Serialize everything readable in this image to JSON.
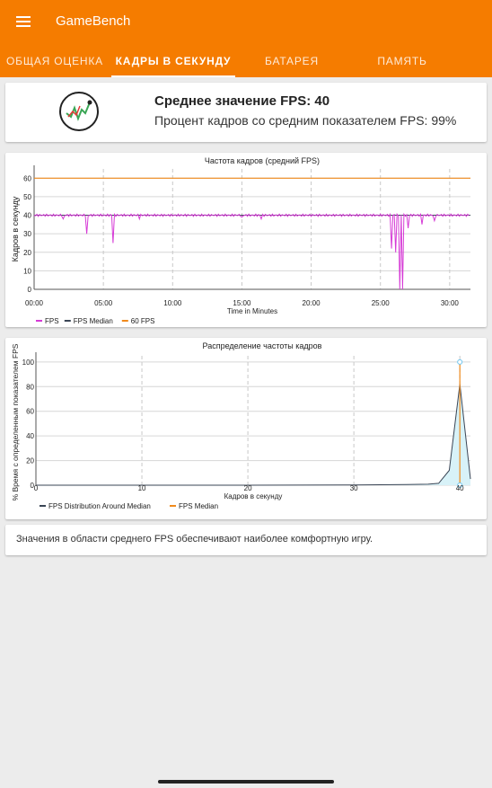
{
  "app": {
    "title": "GameBench"
  },
  "tabs": [
    {
      "label": "ОБЩАЯ ОЦЕНКА",
      "active": false
    },
    {
      "label": "КАДРЫ В СЕКУНДУ",
      "active": true
    },
    {
      "label": "БАТАРЕЯ",
      "active": false
    },
    {
      "label": "ПАМЯТЬ",
      "active": false
    }
  ],
  "summary": {
    "median_fps_text": "Среднее значение FPS: 40",
    "frames_percent_text": "Процент кадров со средним показателем FPS: 99%"
  },
  "colors": {
    "brand": "#f57c00",
    "fps_series": "#d63bd6",
    "median": "#3a4555",
    "sixty": "#f08a1c",
    "dist_fill": "#d8f2f8"
  },
  "chart_data": [
    {
      "type": "line",
      "title": "Частота кадров (средний FPS)",
      "xlabel": "Time in Minutes",
      "ylabel": "Кадров в секунду",
      "xlim": [
        0,
        31.5
      ],
      "ylim": [
        0,
        65
      ],
      "x_ticks": [
        "00:00",
        "05:00",
        "10:00",
        "15:00",
        "20:00",
        "25:00",
        "30:00"
      ],
      "y_ticks": [
        0,
        10,
        20,
        30,
        40,
        50,
        60
      ],
      "legend": [
        "FPS",
        "FPS Median",
        "60 FPS"
      ],
      "legend_position": "bottom-left",
      "series": [
        {
          "name": "FPS",
          "baseline": 40,
          "dips": [
            [
              2.1,
              38
            ],
            [
              3.8,
              30
            ],
            [
              5.7,
              25
            ],
            [
              7.6,
              38
            ],
            [
              15.0,
              39
            ],
            [
              16.4,
              38
            ],
            [
              25.8,
              22
            ],
            [
              26.1,
              20
            ],
            [
              26.4,
              0
            ],
            [
              26.6,
              0
            ],
            [
              27.0,
              33
            ],
            [
              28.0,
              35
            ],
            [
              28.9,
              37
            ]
          ]
        },
        {
          "name": "FPS Median",
          "value": 40
        },
        {
          "name": "60 FPS",
          "value": 60
        }
      ]
    },
    {
      "type": "area",
      "title": "Распределение частоты кадров",
      "xlabel": "Кадров в секунду",
      "ylabel": "% Время с определенным показателем FPS",
      "xlim": [
        0,
        41
      ],
      "ylim": [
        0,
        105
      ],
      "x_ticks": [
        0,
        10,
        20,
        30,
        40
      ],
      "y_ticks": [
        0,
        20,
        40,
        60,
        80,
        100
      ],
      "legend": [
        "FPS Distribution Around Median",
        "FPS Median"
      ],
      "legend_position": "bottom-left",
      "series": [
        {
          "name": "FPS Distribution Around Median",
          "x": [
            0,
            10,
            20,
            30,
            35,
            37,
            38,
            39,
            40,
            41
          ],
          "y": [
            0,
            0,
            0,
            0.2,
            0.5,
            0.8,
            1.5,
            12,
            82,
            5
          ]
        },
        {
          "name": "FPS Median",
          "x": 40,
          "y_range": [
            0,
            100
          ]
        }
      ]
    }
  ],
  "info": {
    "text": "Значения в области среднего FPS обеспечивают наиболее комфортную игру."
  }
}
